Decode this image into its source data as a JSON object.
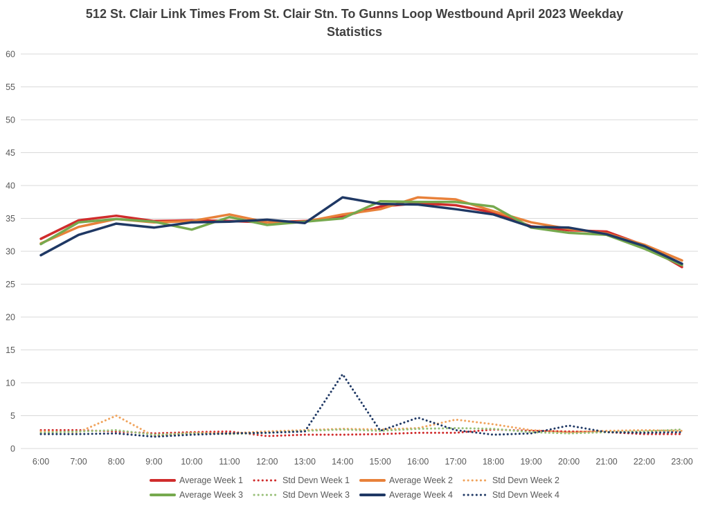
{
  "title": "512 St. Clair Link Times From St. Clair Stn. To Gunns Loop Westbound April 2023 Weekday Statistics",
  "colors": {
    "background": "#ffffff",
    "gridline": "#d9d9d9",
    "axis_text": "#595959",
    "title_text": "#3f3f3f",
    "legend_text": "#595959",
    "week1_red": "#d02c2c",
    "week2_orange": "#e8813a",
    "week2_orange_light": "#f0a35c",
    "week3_green": "#76a94e",
    "week3_green_light": "#97bf77",
    "week4_navy": "#1f3864"
  },
  "chart_data": {
    "type": "line",
    "title": "512 St. Clair Link Times From St. Clair Stn. To Gunns Loop Westbound April 2023 Weekday Statistics",
    "xlabel": "",
    "ylabel": "",
    "ylim": [
      0,
      60
    ],
    "ytick_step": 5,
    "yticks": [
      0,
      5,
      10,
      15,
      20,
      25,
      30,
      35,
      40,
      45,
      50,
      55,
      60
    ],
    "grid": "horizontal",
    "legend_position": "bottom",
    "x": [
      "6:00",
      "7:00",
      "8:00",
      "9:00",
      "10:00",
      "11:00",
      "12:00",
      "13:00",
      "14:00",
      "15:00",
      "16:00",
      "17:00",
      "18:00",
      "19:00",
      "20:00",
      "21:00",
      "22:00",
      "23:00"
    ],
    "series": [
      {
        "name": "Average Week 1",
        "style": "solid",
        "color": "#d02c2c",
        "values": [
          31.9,
          34.7,
          35.4,
          34.6,
          34.7,
          34.6,
          34.4,
          34.6,
          35.3,
          36.8,
          37.3,
          37.0,
          35.9,
          33.8,
          33.2,
          33.0,
          30.9,
          27.6
        ]
      },
      {
        "name": "Std Devn Week 1",
        "style": "dotted",
        "color": "#d02c2c",
        "values": [
          2.8,
          2.8,
          2.6,
          2.3,
          2.5,
          2.6,
          1.9,
          2.1,
          2.1,
          2.2,
          2.4,
          2.4,
          2.9,
          2.7,
          2.6,
          2.5,
          2.2,
          2.2
        ]
      },
      {
        "name": "Average Week 2",
        "style": "solid",
        "color": "#e8813a",
        "values": [
          31.2,
          33.7,
          34.9,
          34.4,
          34.6,
          35.6,
          34.4,
          34.5,
          35.6,
          36.4,
          38.2,
          37.9,
          36.1,
          34.4,
          33.4,
          32.7,
          31.0,
          28.6
        ]
      },
      {
        "name": "Std Devn Week 2",
        "style": "dotted",
        "color": "#f0a35c",
        "values": [
          2.6,
          2.5,
          5.0,
          1.9,
          2.4,
          2.3,
          2.6,
          2.8,
          3.0,
          2.9,
          3.1,
          4.4,
          3.7,
          2.8,
          2.5,
          2.7,
          2.8,
          2.7
        ]
      },
      {
        "name": "Average Week 3",
        "style": "solid",
        "color": "#76a94e",
        "values": [
          31.1,
          34.4,
          34.9,
          34.5,
          33.3,
          35.2,
          34.0,
          34.5,
          35.0,
          37.6,
          37.5,
          37.5,
          36.8,
          33.6,
          32.8,
          32.5,
          30.4,
          27.9
        ]
      },
      {
        "name": "Std Devn Week 3",
        "style": "dotted",
        "color": "#97bf77",
        "values": [
          2.4,
          2.6,
          2.8,
          2.1,
          2.3,
          2.2,
          2.4,
          2.7,
          2.9,
          2.7,
          3.0,
          3.1,
          3.0,
          2.5,
          2.3,
          2.5,
          2.6,
          2.9
        ]
      },
      {
        "name": "Average Week 4",
        "style": "solid",
        "color": "#1f3864",
        "values": [
          29.4,
          32.5,
          34.2,
          33.6,
          34.4,
          34.5,
          34.8,
          34.3,
          38.2,
          37.2,
          37.1,
          36.4,
          35.6,
          33.7,
          33.6,
          32.6,
          30.8,
          28.1
        ]
      },
      {
        "name": "Std Devn Week 4",
        "style": "dotted",
        "color": "#1f3864",
        "values": [
          2.2,
          2.2,
          2.3,
          1.8,
          2.1,
          2.3,
          2.4,
          2.6,
          11.3,
          2.7,
          4.7,
          2.8,
          2.1,
          2.3,
          3.5,
          2.5,
          2.4,
          2.5
        ]
      }
    ]
  }
}
